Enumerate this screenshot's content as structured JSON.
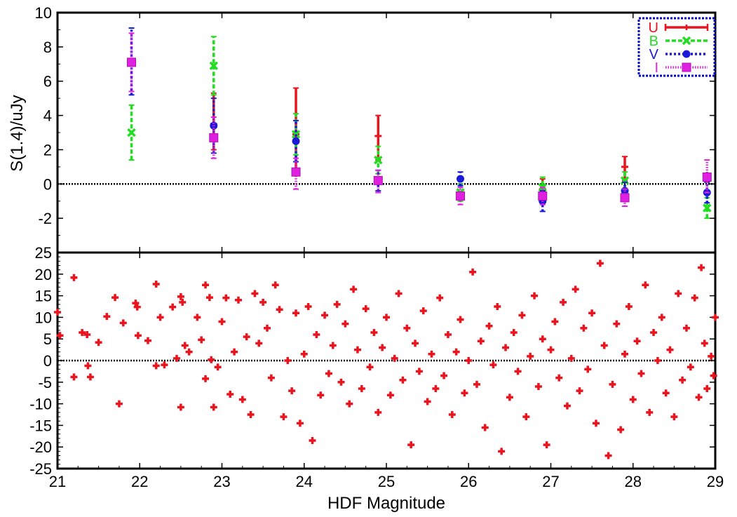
{
  "chart_data": [
    {
      "type": "line",
      "subtype": "errorbar",
      "xlabel": "",
      "ylabel": "S(1.4)/uJy",
      "xlim": [
        21,
        29
      ],
      "ylim": [
        -4,
        10
      ],
      "yticks": [
        -2,
        0,
        2,
        4,
        6,
        8,
        10
      ],
      "ytick_labels": [
        "-2",
        "0",
        "2",
        "4",
        "6",
        "8",
        "10"
      ],
      "zero_line": true,
      "legend": {
        "placement": "top-right",
        "border_color": "#0000cc",
        "entries": [
          "U",
          "B",
          "V",
          "I"
        ]
      },
      "series": [
        {
          "name": "U",
          "color": "#e8141e",
          "marker": "tick",
          "points": [
            {
              "x": 22.9,
              "y": 3.5,
              "lo": 2.0,
              "hi": 5.3
            },
            {
              "x": 23.9,
              "y": 2.9,
              "lo": 0.7,
              "hi": 5.6
            },
            {
              "x": 24.9,
              "y": 2.8,
              "lo": 1.4,
              "hi": 4.0
            },
            {
              "x": 26.9,
              "y": -0.3,
              "lo": -0.9,
              "hi": 0.3
            },
            {
              "x": 27.9,
              "y": 1.0,
              "lo": 0.2,
              "hi": 1.6
            }
          ]
        },
        {
          "name": "B",
          "color": "#22dd22",
          "marker": "x",
          "points": [
            {
              "x": 21.9,
              "y": 3.0,
              "lo": 1.4,
              "hi": 4.6
            },
            {
              "x": 22.9,
              "y": 6.9,
              "lo": 5.2,
              "hi": 8.6
            },
            {
              "x": 23.9,
              "y": 2.9,
              "lo": 1.7,
              "hi": 4.1
            },
            {
              "x": 24.9,
              "y": 1.4,
              "lo": 0.6,
              "hi": 2.2
            },
            {
              "x": 25.9,
              "y": -0.5,
              "lo": -1.0,
              "hi": 0.0
            },
            {
              "x": 26.9,
              "y": -0.2,
              "lo": -0.8,
              "hi": 0.4
            },
            {
              "x": 27.9,
              "y": 0.2,
              "lo": -0.3,
              "hi": 0.7
            },
            {
              "x": 28.9,
              "y": -1.4,
              "lo": -2.0,
              "hi": -0.8
            }
          ]
        },
        {
          "name": "V",
          "color": "#1a1ad6",
          "marker": "circle",
          "points": [
            {
              "x": 21.9,
              "y": 7.1,
              "lo": 5.2,
              "hi": 9.1
            },
            {
              "x": 22.9,
              "y": 3.4,
              "lo": 1.8,
              "hi": 5.0
            },
            {
              "x": 23.9,
              "y": 2.5,
              "lo": 1.3,
              "hi": 3.7
            },
            {
              "x": 24.9,
              "y": 0.2,
              "lo": -0.4,
              "hi": 0.8
            },
            {
              "x": 25.9,
              "y": 0.3,
              "lo": -0.1,
              "hi": 0.7
            },
            {
              "x": 26.9,
              "y": -1.0,
              "lo": -1.6,
              "hi": -0.4
            },
            {
              "x": 27.9,
              "y": -0.4,
              "lo": -0.9,
              "hi": 0.1
            },
            {
              "x": 28.9,
              "y": -0.5,
              "lo": -1.1,
              "hi": 0.1
            }
          ]
        },
        {
          "name": "I",
          "color": "#e020e0",
          "marker": "square",
          "points": [
            {
              "x": 21.9,
              "y": 7.1,
              "lo": 5.4,
              "hi": 8.8
            },
            {
              "x": 22.9,
              "y": 2.7,
              "lo": 1.5,
              "hi": 3.9
            },
            {
              "x": 23.9,
              "y": 0.7,
              "lo": -0.3,
              "hi": 1.5
            },
            {
              "x": 24.9,
              "y": 0.2,
              "lo": -0.5,
              "hi": 0.8
            },
            {
              "x": 25.9,
              "y": -0.7,
              "lo": -1.2,
              "hi": -0.2
            },
            {
              "x": 26.9,
              "y": -0.7,
              "lo": -1.2,
              "hi": -0.2
            },
            {
              "x": 27.9,
              "y": -0.8,
              "lo": -1.3,
              "hi": -0.3
            },
            {
              "x": 28.9,
              "y": 0.4,
              "lo": -0.5,
              "hi": 1.4
            }
          ]
        }
      ]
    },
    {
      "type": "scatter",
      "xlabel": "HDF Magnitude",
      "ylabel": "",
      "xlim": [
        21,
        29
      ],
      "ylim": [
        -25,
        25
      ],
      "xticks": [
        21,
        22,
        23,
        24,
        25,
        26,
        27,
        28,
        29
      ],
      "xtick_labels": [
        "21",
        "22",
        "23",
        "24",
        "25",
        "26",
        "27",
        "28",
        "29"
      ],
      "yticks": [
        -25,
        -20,
        -15,
        -10,
        -5,
        0,
        5,
        10,
        15,
        20,
        25
      ],
      "ytick_labels": [
        "-25",
        "-20",
        "-15",
        "-10",
        "-5",
        "0",
        "5",
        "10",
        "15",
        "20",
        "25"
      ],
      "zero_line": true,
      "marker": "plus",
      "color": "#e8141e",
      "points": [
        [
          21.0,
          11.2
        ],
        [
          21.03,
          5.8
        ],
        [
          21.2,
          19.2
        ],
        [
          21.2,
          -3.8
        ],
        [
          21.3,
          6.5
        ],
        [
          21.36,
          6.0
        ],
        [
          21.37,
          -1.2
        ],
        [
          21.4,
          -3.8
        ],
        [
          21.5,
          4.2
        ],
        [
          21.6,
          10.2
        ],
        [
          21.7,
          14.6
        ],
        [
          21.75,
          -10.0
        ],
        [
          21.8,
          8.7
        ],
        [
          21.95,
          13.3
        ],
        [
          21.97,
          12.4
        ],
        [
          21.98,
          5.8
        ],
        [
          22.1,
          4.6
        ],
        [
          22.2,
          17.7
        ],
        [
          22.2,
          -1.2
        ],
        [
          22.25,
          10.0
        ],
        [
          22.3,
          -1.0
        ],
        [
          22.4,
          12.4
        ],
        [
          22.45,
          0.5
        ],
        [
          22.5,
          14.8
        ],
        [
          22.5,
          -10.8
        ],
        [
          22.52,
          13.5
        ],
        [
          22.55,
          3.5
        ],
        [
          22.6,
          2.0
        ],
        [
          22.7,
          10.0
        ],
        [
          22.75,
          4.8
        ],
        [
          22.8,
          17.5
        ],
        [
          22.8,
          -4.2
        ],
        [
          22.85,
          14.6
        ],
        [
          22.87,
          0.2
        ],
        [
          22.9,
          -10.8
        ],
        [
          22.95,
          -1.5
        ],
        [
          23.0,
          9.0
        ],
        [
          23.05,
          14.5
        ],
        [
          23.1,
          -7.8
        ],
        [
          23.15,
          2.0
        ],
        [
          23.2,
          14.0
        ],
        [
          23.25,
          -9.0
        ],
        [
          23.3,
          5.5
        ],
        [
          23.35,
          -12.5
        ],
        [
          23.4,
          15.5
        ],
        [
          23.45,
          4.0
        ],
        [
          23.5,
          13.5
        ],
        [
          23.55,
          7.5
        ],
        [
          23.6,
          -4.0
        ],
        [
          23.65,
          17.5
        ],
        [
          23.7,
          11.8
        ],
        [
          23.75,
          -13.0
        ],
        [
          23.8,
          0.0
        ],
        [
          23.85,
          -7.0
        ],
        [
          23.9,
          11.0
        ],
        [
          23.95,
          -14.5
        ],
        [
          24.0,
          1.5
        ],
        [
          24.05,
          12.5
        ],
        [
          24.1,
          -18.5
        ],
        [
          24.15,
          6.0
        ],
        [
          24.2,
          -8.0
        ],
        [
          24.25,
          10.5
        ],
        [
          24.3,
          -3.0
        ],
        [
          24.35,
          3.5
        ],
        [
          24.4,
          13.0
        ],
        [
          24.45,
          -5.0
        ],
        [
          24.5,
          8.5
        ],
        [
          24.55,
          -10.0
        ],
        [
          24.6,
          16.5
        ],
        [
          24.65,
          2.5
        ],
        [
          24.7,
          -6.5
        ],
        [
          24.75,
          12.0
        ],
        [
          24.8,
          -1.5
        ],
        [
          24.85,
          6.5
        ],
        [
          24.9,
          -12.0
        ],
        [
          24.95,
          3.0
        ],
        [
          25.0,
          10.0
        ],
        [
          25.05,
          -8.0
        ],
        [
          25.1,
          0.5
        ],
        [
          25.15,
          15.5
        ],
        [
          25.2,
          -4.5
        ],
        [
          25.25,
          7.5
        ],
        [
          25.3,
          -19.5
        ],
        [
          25.35,
          4.0
        ],
        [
          25.4,
          -2.5
        ],
        [
          25.45,
          11.5
        ],
        [
          25.5,
          -9.5
        ],
        [
          25.55,
          1.5
        ],
        [
          25.6,
          -6.5
        ],
        [
          25.65,
          14.5
        ],
        [
          25.7,
          -3.5
        ],
        [
          25.75,
          6.0
        ],
        [
          25.8,
          -12.5
        ],
        [
          25.85,
          2.0
        ],
        [
          25.9,
          9.5
        ],
        [
          25.95,
          -7.5
        ],
        [
          26.0,
          0.0
        ],
        [
          26.05,
          20.5
        ],
        [
          26.1,
          -5.5
        ],
        [
          26.15,
          4.5
        ],
        [
          26.2,
          -15.5
        ],
        [
          26.25,
          8.0
        ],
        [
          26.3,
          -1.0
        ],
        [
          26.35,
          12.5
        ],
        [
          26.4,
          -21.0
        ],
        [
          26.45,
          3.0
        ],
        [
          26.5,
          -8.5
        ],
        [
          26.55,
          6.5
        ],
        [
          26.6,
          -2.5
        ],
        [
          26.65,
          10.5
        ],
        [
          26.7,
          -13.0
        ],
        [
          26.75,
          1.0
        ],
        [
          26.8,
          15.0
        ],
        [
          26.85,
          -6.0
        ],
        [
          26.9,
          5.0
        ],
        [
          26.95,
          -19.5
        ],
        [
          27.0,
          2.5
        ],
        [
          27.05,
          9.0
        ],
        [
          27.1,
          -4.0
        ],
        [
          27.15,
          13.5
        ],
        [
          27.2,
          -10.5
        ],
        [
          27.25,
          0.5
        ],
        [
          27.3,
          16.5
        ],
        [
          27.35,
          -7.0
        ],
        [
          27.4,
          7.5
        ],
        [
          27.45,
          -2.0
        ],
        [
          27.5,
          11.0
        ],
        [
          27.55,
          -14.5
        ],
        [
          27.6,
          22.5
        ],
        [
          27.65,
          3.5
        ],
        [
          27.7,
          -22.0
        ],
        [
          27.75,
          -5.5
        ],
        [
          27.8,
          8.5
        ],
        [
          27.85,
          -16.0
        ],
        [
          27.9,
          1.5
        ],
        [
          27.95,
          12.5
        ],
        [
          28.0,
          -9.0
        ],
        [
          28.05,
          4.5
        ],
        [
          28.1,
          -3.0
        ],
        [
          28.15,
          17.5
        ],
        [
          28.2,
          -12.0
        ],
        [
          28.25,
          6.5
        ],
        [
          28.3,
          0.0
        ],
        [
          28.35,
          10.0
        ],
        [
          28.4,
          -7.5
        ],
        [
          28.45,
          2.5
        ],
        [
          28.5,
          -13.0
        ],
        [
          28.55,
          15.5
        ],
        [
          28.6,
          -4.5
        ],
        [
          28.65,
          7.5
        ],
        [
          28.7,
          -1.5
        ],
        [
          28.75,
          14.5
        ],
        [
          28.8,
          -8.5
        ],
        [
          28.83,
          21.5
        ],
        [
          28.87,
          4.0
        ],
        [
          28.9,
          -6.5
        ],
        [
          28.95,
          1.0
        ],
        [
          28.98,
          -3.5
        ],
        [
          29.0,
          10.0
        ]
      ]
    }
  ]
}
